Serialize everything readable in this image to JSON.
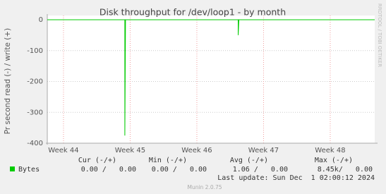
{
  "chart_data": {
    "type": "line",
    "title": "Disk throughput for /dev/loop1 - by month",
    "y_label": "Pr second read (-) / write (+)",
    "side_label": "RRDTOOL / TOBI OETIKER",
    "xlim": [
      43.757,
      48.667
    ],
    "xticks": [
      {
        "value": 44,
        "label": "Week 44"
      },
      {
        "value": 45,
        "label": "Week 45"
      },
      {
        "value": 46,
        "label": "Week 46"
      },
      {
        "value": 47,
        "label": "Week 47"
      },
      {
        "value": 48,
        "label": "Week 48"
      }
    ],
    "ylim": [
      -400,
      0
    ],
    "yticks": [
      0,
      -100,
      -200,
      -300,
      -400
    ],
    "grid": true,
    "series": [
      {
        "name": "Bytes",
        "color": "#00cc00",
        "x": [
          43.757,
          44.92,
          44.92,
          44.93,
          46.62,
          46.62,
          46.63,
          48.667
        ],
        "values": [
          0,
          0,
          -375,
          0,
          0,
          -50,
          0,
          0
        ]
      }
    ],
    "legend": {
      "headers": [
        "Cur (-/+)",
        "Min (-/+)",
        "Avg (-/+)",
        "Max (-/+)"
      ],
      "cells": [
        "0.00 /   0.00",
        "0.00 /   0.00",
        "1.06 /   0.00",
        "8.45k/   0.00"
      ]
    },
    "last_update": "Last update: Sun Dec  1 02:00:12 2024",
    "footer": "Munin 2.0.75"
  }
}
